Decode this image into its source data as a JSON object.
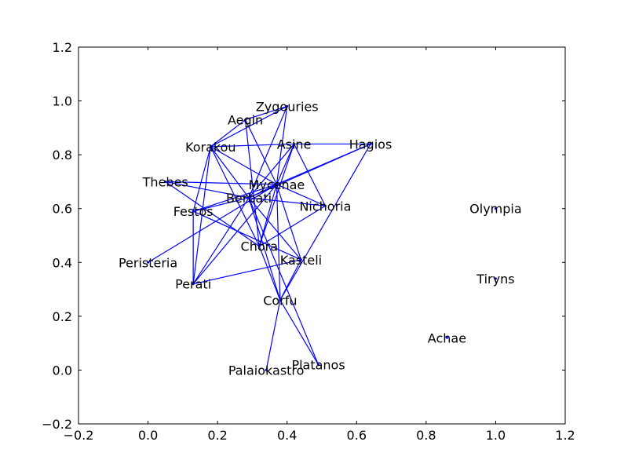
{
  "chart_data": {
    "type": "network",
    "title": "",
    "xlabel": "",
    "ylabel": "",
    "xlim": [
      -0.2,
      1.2
    ],
    "ylim": [
      -0.2,
      1.2
    ],
    "xticks": [
      "−0.2",
      "0.0",
      "0.2",
      "0.4",
      "0.6",
      "0.8",
      "1.0",
      "1.2"
    ],
    "yticks": [
      "−0.2",
      "0.0",
      "0.2",
      "0.4",
      "0.6",
      "0.8",
      "1.0",
      "1.2"
    ],
    "xtick_values": [
      -0.2,
      0.0,
      0.2,
      0.4,
      0.6,
      0.8,
      1.0,
      1.2
    ],
    "ytick_values": [
      -0.2,
      0.0,
      0.2,
      0.4,
      0.6,
      0.8,
      1.0,
      1.2
    ],
    "edge_color": "#0000ff",
    "grid": false,
    "nodes": [
      {
        "name": "Zygouries",
        "x": 0.4,
        "y": 0.98
      },
      {
        "name": "Aegin",
        "x": 0.28,
        "y": 0.93
      },
      {
        "name": "Korakou",
        "x": 0.18,
        "y": 0.83
      },
      {
        "name": "Asine",
        "x": 0.42,
        "y": 0.84
      },
      {
        "name": "Hagios",
        "x": 0.64,
        "y": 0.84
      },
      {
        "name": "Thebes",
        "x": 0.05,
        "y": 0.7
      },
      {
        "name": "Mycenae",
        "x": 0.37,
        "y": 0.69
      },
      {
        "name": "Berbati",
        "x": 0.29,
        "y": 0.64
      },
      {
        "name": "Festos",
        "x": 0.13,
        "y": 0.59
      },
      {
        "name": "Nichoria",
        "x": 0.51,
        "y": 0.61
      },
      {
        "name": "Olympia",
        "x": 1.0,
        "y": 0.6
      },
      {
        "name": "Chora",
        "x": 0.32,
        "y": 0.46
      },
      {
        "name": "Kasteli",
        "x": 0.44,
        "y": 0.41
      },
      {
        "name": "Peristeria",
        "x": 0.0,
        "y": 0.4
      },
      {
        "name": "Tiryns",
        "x": 1.0,
        "y": 0.34
      },
      {
        "name": "Perati",
        "x": 0.13,
        "y": 0.32
      },
      {
        "name": "Corfu",
        "x": 0.38,
        "y": 0.26
      },
      {
        "name": "Achae",
        "x": 0.86,
        "y": 0.12
      },
      {
        "name": "Platanos",
        "x": 0.49,
        "y": 0.02
      },
      {
        "name": "Palaiokastro",
        "x": 0.34,
        "y": 0.0
      }
    ],
    "edges": [
      [
        "Zygouries",
        "Aegin"
      ],
      [
        "Zygouries",
        "Korakou"
      ],
      [
        "Zygouries",
        "Mycenae"
      ],
      [
        "Zygouries",
        "Berbati"
      ],
      [
        "Aegin",
        "Korakou"
      ],
      [
        "Aegin",
        "Mycenae"
      ],
      [
        "Aegin",
        "Chora"
      ],
      [
        "Korakou",
        "Asine"
      ],
      [
        "Korakou",
        "Mycenae"
      ],
      [
        "Korakou",
        "Berbati"
      ],
      [
        "Korakou",
        "Festos"
      ],
      [
        "Korakou",
        "Perati"
      ],
      [
        "Korakou",
        "Chora"
      ],
      [
        "Asine",
        "Mycenae"
      ],
      [
        "Asine",
        "Berbati"
      ],
      [
        "Asine",
        "Chora"
      ],
      [
        "Asine",
        "Nichoria"
      ],
      [
        "Hagios",
        "Mycenae"
      ],
      [
        "Hagios",
        "Berbati"
      ],
      [
        "Hagios",
        "Corfu"
      ],
      [
        "Hagios",
        "Asine"
      ],
      [
        "Thebes",
        "Mycenae"
      ],
      [
        "Thebes",
        "Berbati"
      ],
      [
        "Thebes",
        "Chora"
      ],
      [
        "Mycenae",
        "Berbati"
      ],
      [
        "Mycenae",
        "Festos"
      ],
      [
        "Mycenae",
        "Nichoria"
      ],
      [
        "Mycenae",
        "Chora"
      ],
      [
        "Mycenae",
        "Kasteli"
      ],
      [
        "Mycenae",
        "Corfu"
      ],
      [
        "Mycenae",
        "Peristeria"
      ],
      [
        "Berbati",
        "Festos"
      ],
      [
        "Berbati",
        "Nichoria"
      ],
      [
        "Berbati",
        "Kasteli"
      ],
      [
        "Berbati",
        "Perati"
      ],
      [
        "Berbati",
        "Corfu"
      ],
      [
        "Berbati",
        "Platanos"
      ],
      [
        "Festos",
        "Perati"
      ],
      [
        "Festos",
        "Kasteli"
      ],
      [
        "Nichoria",
        "Chora"
      ],
      [
        "Perati",
        "Kasteli"
      ],
      [
        "Perati",
        "Mycenae"
      ],
      [
        "Kasteli",
        "Corfu"
      ],
      [
        "Chora",
        "Corfu"
      ],
      [
        "Corfu",
        "Palaiokastro"
      ],
      [
        "Corfu",
        "Platanos"
      ]
    ]
  }
}
